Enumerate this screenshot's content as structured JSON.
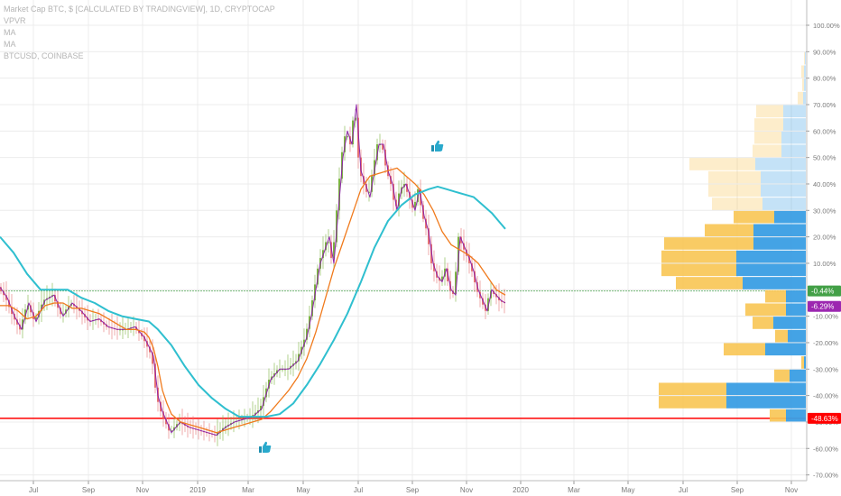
{
  "legend": {
    "title": "Market Cap BTC, $ [CALCULATED BY TRADINGVIEW], 1D, CRYPTOCAP",
    "vpvr": "VPVR",
    "ma1": "MA",
    "ma2": "MA",
    "compare": "BTCUSD, COINBASE"
  },
  "colors": {
    "ma_fast": "#f07a1c",
    "ma_slow": "#2fbfcf",
    "main_line": "#8e24aa",
    "candle_up": "#7cb342",
    "candle_down": "#e57373",
    "compare_line": "#c9c9c9",
    "vp_up": "#3a9ee4",
    "vp_down": "#f8c553",
    "hline_red": "#ff0000",
    "hline_green": "#43a047",
    "label_green": "#43a047",
    "label_purple": "#9c27b0",
    "label_red": "#ff0000"
  },
  "icons": [
    "thumbs-up-icon",
    "thumbs-up-icon"
  ],
  "chart_data": {
    "type": "line",
    "y_unit": "%",
    "ylim": [
      -72,
      102
    ],
    "y_ticks": [
      "100.00%",
      "90.00%",
      "80.00%",
      "70.00%",
      "60.00%",
      "50.00%",
      "40.00%",
      "30.00%",
      "20.00%",
      "10.00%",
      "-10.00%",
      "-20.00%",
      "-30.00%",
      "-40.00%",
      "-50.00%",
      "-60.00%",
      "-70.00%"
    ],
    "x_ticks": [
      "Jul",
      "Sep",
      "Nov",
      "2019",
      "Mar",
      "May",
      "Jul",
      "Sep",
      "Nov",
      "2020",
      "Mar",
      "May",
      "Jul",
      "Sep",
      "Nov"
    ],
    "price_labels": [
      {
        "text": "-0.44%",
        "value": -0.44,
        "color": "#43a047"
      },
      {
        "text": "-6.29%",
        "value": -6.29,
        "color": "#9c27b0"
      },
      {
        "text": "-48.63%",
        "value": -48.63,
        "color": "#ff0000"
      }
    ],
    "hlines": [
      {
        "value": -48.63,
        "color": "#ff0000"
      },
      {
        "value": -0.44,
        "color": "#43a047"
      }
    ],
    "series": [
      {
        "name": "Market Cap BTC",
        "x": [
          0,
          8,
          16,
          24,
          32,
          40,
          50,
          60,
          70,
          80,
          90,
          100,
          110,
          120,
          130,
          140,
          150,
          160,
          170,
          175,
          180,
          185,
          190,
          200,
          210,
          220,
          230,
          240,
          250,
          260,
          270,
          280,
          290,
          300,
          310,
          320,
          330,
          340,
          345,
          350,
          355,
          360,
          365,
          370,
          375,
          380,
          385,
          390,
          395,
          400,
          405,
          410,
          415,
          420,
          425,
          430,
          435,
          440,
          445,
          450,
          455,
          460,
          465,
          470,
          475,
          480,
          485,
          490,
          495,
          500,
          505,
          510,
          515,
          520,
          525,
          530,
          535,
          540,
          545,
          550,
          555,
          560
        ],
        "values": [
          1,
          -3,
          -10,
          -15,
          -5,
          -12,
          -4,
          -2,
          -10,
          -5,
          -8,
          -12,
          -11,
          -14,
          -15,
          -15,
          -14,
          -18,
          -25,
          -40,
          -46,
          -50,
          -54,
          -50,
          -52,
          -53,
          -54,
          -55,
          -52,
          -50,
          -49,
          -48,
          -45,
          -34,
          -30,
          -30,
          -27,
          -18,
          -10,
          0,
          10,
          15,
          20,
          10,
          30,
          50,
          60,
          55,
          70,
          45,
          40,
          35,
          45,
          55,
          55,
          45,
          40,
          30,
          38,
          40,
          35,
          30,
          38,
          28,
          22,
          10,
          5,
          3,
          8,
          0,
          -2,
          20,
          16,
          12,
          7,
          0,
          -4,
          -8,
          0,
          -2,
          -4,
          -5
        ]
      },
      {
        "name": "MA",
        "x": [
          0,
          10,
          20,
          30,
          40,
          50,
          60,
          70,
          80,
          90,
          100,
          110,
          120,
          130,
          140,
          150,
          160,
          165,
          170,
          175,
          180,
          185,
          190,
          200,
          210,
          220,
          230,
          240,
          250,
          260,
          270,
          280,
          290,
          300,
          310,
          320,
          330,
          340,
          350,
          360,
          370,
          380,
          390,
          400,
          410,
          420,
          430,
          440,
          450,
          460,
          470,
          480,
          490,
          500,
          510,
          520,
          530,
          540,
          550,
          560
        ],
        "values": [
          -6,
          -6,
          -8,
          -11,
          -10,
          -6,
          -5,
          -5,
          -7,
          -7,
          -8,
          -9,
          -11,
          -13,
          -15,
          -15,
          -16,
          -18,
          -22,
          -29,
          -38,
          -43,
          -47,
          -50,
          -51,
          -52,
          -53,
          -54,
          -53,
          -52,
          -51,
          -50,
          -49,
          -46,
          -42,
          -38,
          -33,
          -26,
          -16,
          -4,
          8,
          18,
          28,
          38,
          43,
          44,
          45,
          46,
          43,
          40,
          36,
          30,
          22,
          17,
          15,
          13,
          10,
          5,
          0,
          -2
        ]
      },
      {
        "name": "MA",
        "x": [
          0,
          15,
          30,
          45,
          60,
          75,
          90,
          105,
          120,
          135,
          150,
          165,
          175,
          190,
          205,
          220,
          235,
          250,
          265,
          280,
          295,
          310,
          325,
          340,
          355,
          370,
          385,
          400,
          415,
          430,
          445,
          460,
          475,
          485,
          495,
          505,
          515,
          525,
          535,
          545,
          555,
          560
        ],
        "values": [
          20,
          14,
          6,
          0,
          0,
          0,
          -3,
          -5,
          -8,
          -10,
          -11,
          -12,
          -15,
          -21,
          -29,
          -36,
          -41,
          -45,
          -48,
          -48,
          -48,
          -47,
          -43,
          -36,
          -28,
          -19,
          -9,
          3,
          16,
          26,
          32,
          36,
          38,
          39,
          38,
          37,
          36,
          35,
          32,
          29,
          25,
          23
        ]
      }
    ],
    "volume_profile": [
      {
        "level": 85,
        "up": 1,
        "down": 1
      },
      {
        "level": 80,
        "up": 2,
        "down": 3
      },
      {
        "level": 75,
        "up": 2,
        "down": 2
      },
      {
        "level": 70,
        "up": 3,
        "down": 6
      },
      {
        "level": 65,
        "up": 25,
        "down": 30
      },
      {
        "level": 60,
        "up": 25,
        "down": 32
      },
      {
        "level": 55,
        "up": 27,
        "down": 30
      },
      {
        "level": 50,
        "up": 27,
        "down": 32
      },
      {
        "level": 45,
        "up": 56,
        "down": 73
      },
      {
        "level": 40,
        "up": 50,
        "down": 58
      },
      {
        "level": 35,
        "up": 50,
        "down": 58
      },
      {
        "level": 30,
        "up": 48,
        "down": 56
      },
      {
        "level": 25,
        "up": 35,
        "down": 45
      },
      {
        "level": 20,
        "up": 58,
        "down": 54
      },
      {
        "level": 15,
        "up": 58,
        "down": 99
      },
      {
        "level": 10,
        "up": 77,
        "down": 83
      },
      {
        "level": 5,
        "up": 77,
        "down": 83
      },
      {
        "level": 0,
        "up": 70,
        "down": 74
      },
      {
        "level": -5,
        "up": 22,
        "down": 23
      },
      {
        "level": -10,
        "up": 22,
        "down": 45
      },
      {
        "level": -15,
        "up": 36,
        "down": 23
      },
      {
        "level": -20,
        "up": 20,
        "down": 14
      },
      {
        "level": -25,
        "up": 45,
        "down": 46
      },
      {
        "level": -30,
        "up": 2,
        "down": 3
      },
      {
        "level": -35,
        "up": 18,
        "down": 17
      },
      {
        "level": -40,
        "up": 88,
        "down": 75
      },
      {
        "level": -45,
        "up": 88,
        "down": 75
      },
      {
        "level": -50,
        "up": 22,
        "down": 18
      }
    ]
  }
}
